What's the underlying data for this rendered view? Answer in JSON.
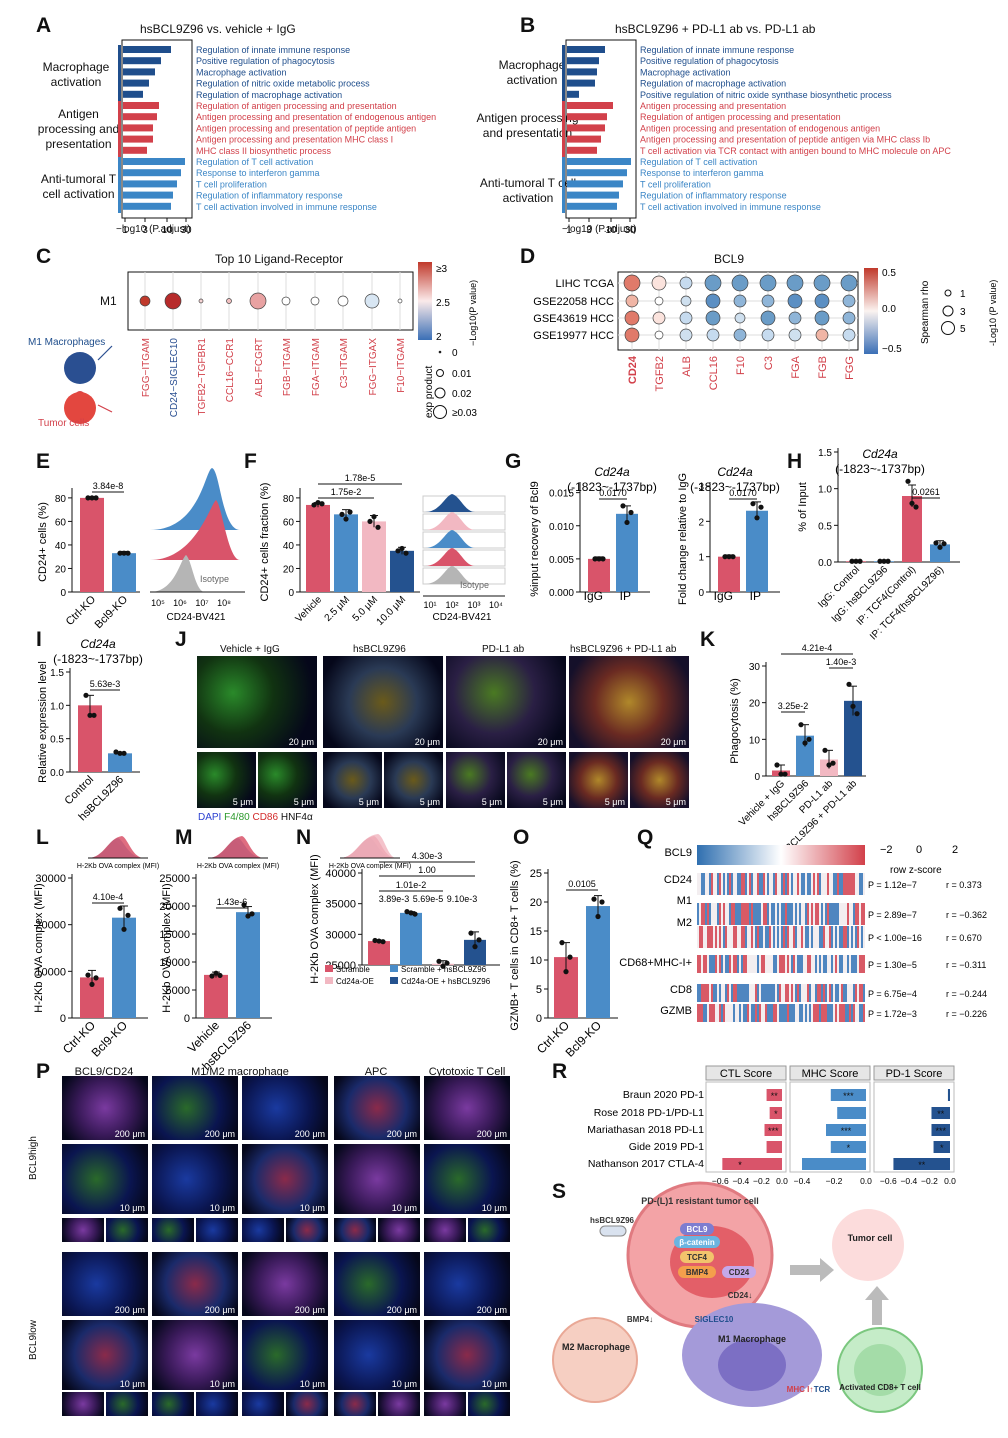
{
  "panel_letters": [
    "A",
    "B",
    "C",
    "D",
    "E",
    "F",
    "G",
    "H",
    "I",
    "J",
    "K",
    "L",
    "M",
    "N",
    "O",
    "P",
    "Q",
    "R",
    "S"
  ],
  "panel_a": {
    "title": "hsBCL9Z96 vs. vehicle + IgG",
    "groups": [
      "Macrophage activation",
      "Antigen processing and presentation",
      "Anti-tumoral T cell activation"
    ],
    "terms": [
      "Regulation of innate immune response",
      "Positive regulation of phagocytosis",
      "Macrophage activation",
      "Regulation of nitric oxide metabolic process",
      "Regulation of macrophage activation",
      "Regulation of antigen processing and presentation",
      "Antigen processing and presentation of endogenous antigen",
      "Antigen processing and presentation of peptide antigen",
      "Antigen processing and presentation MHC class I",
      "MHC class II biosynthetic process",
      "Regulation of T cell activation",
      "Response to interferon gamma",
      "T cell proliferation",
      "Regulation of inflammatory response",
      "T cell activation involved in immune response"
    ],
    "xticks": [
      "1",
      "3",
      "10",
      "30"
    ],
    "xlabel": "−log10 (P.adjust)"
  },
  "panel_b": {
    "title": "hsBCL9Z96 + PD-L1 ab vs. PD-L1 ab",
    "groups": [
      "Macrophage activation",
      "Antigen processing and presentation",
      "Anti-tumoral T cell activation"
    ],
    "terms": [
      "Regulation of innate immune response",
      "Positive regulation of phagocytosis",
      "Macrophage activation",
      "Regulation of macrophage activation",
      "Positive regulation of nitric oxide synthase biosynthetic process",
      "Antigen processing and presentation",
      "Regulation of antigen processing and presentation",
      "Antigen processing and presentation of endogenous antigen",
      "Antigen processing and presentation of peptide antigen via MHC class Ib",
      "T cell activation via TCR contact with antigen bound to MHC molecule on APC",
      "Regulation of T cell activation",
      "Response to interferon gamma",
      "T cell proliferation",
      "Regulation of inflammatory response",
      "T cell activation involved in immune response"
    ],
    "xticks": [
      "1",
      "3",
      "10",
      "30"
    ],
    "xlabel": "−log10 (P.adjust)"
  },
  "panel_c": {
    "title": "Top 10 Ligand-Receptor",
    "row_label": "M1",
    "pairs": [
      "FGG−ITGAM",
      "CD24−SIGLEC10",
      "TGFB2−TGFBR1",
      "CCL16−CCR1",
      "ALB−FCGRT",
      "FGB−ITGAM",
      "FGA−ITGAM",
      "C3−ITGAM",
      "FGG−ITGAX",
      "F10−ITGAM"
    ],
    "colorbar_label": "−Log10(P value)",
    "colorbar_ticks": [
      "≥3",
      "2.5",
      "2"
    ],
    "size_label": "exp product",
    "size_ticks": [
      "0",
      "0.01",
      "0.02",
      "≥0.03"
    ],
    "cell_labels": [
      "M1 Macrophages",
      "Tumor cells"
    ]
  },
  "panel_d": {
    "title": "BCL9",
    "rows": [
      "LIHC TCGA",
      "GSE22058 HCC",
      "GSE43619 HCC",
      "GSE19977 HCC"
    ],
    "cols": [
      "CD24",
      "TGFB2",
      "ALB",
      "CCL16",
      "F10",
      "C3",
      "FGA",
      "FGB",
      "FGG"
    ],
    "colorbar_label": "Spearman rho",
    "colorbar_ticks": [
      "0.5",
      "0.0",
      "−0.5"
    ],
    "size_label": "-Log10 (P value)",
    "size_ticks": [
      "1",
      "3",
      "5"
    ]
  },
  "panel_e": {
    "ylabel": "CD24+ cells (%)",
    "yticks": [
      "0",
      "20",
      "40",
      "60",
      "80"
    ],
    "groups": [
      "Ctrl-KO",
      "Bcl9-KO"
    ],
    "pval": "3.84e-8",
    "hist_xlabel": "CD24-BV421",
    "hist_ticks": [
      "10⁵",
      "10⁶",
      "10⁷",
      "10⁸"
    ],
    "isotype": "Isotype",
    "colors": {
      "ctrl": "#d9546a",
      "ko": "#4a8cc8"
    }
  },
  "panel_f": {
    "ylabel": "CD24+ cells fraction (%)",
    "yticks": [
      "0",
      "20",
      "40",
      "60",
      "80"
    ],
    "groups": [
      "Vehicle",
      "2.5 μM",
      "5.0 μM",
      "10.0 μM"
    ],
    "pvals": [
      "1.78e-5",
      "1.75e-2"
    ],
    "hist_xlabel": "CD24-BV421",
    "hist_ticks": [
      "10¹",
      "10²",
      "10³",
      "10⁴"
    ],
    "isotype": "Isotype"
  },
  "panel_g": {
    "title": "Cd24a",
    "subtitle": "(-1823~-1737bp)",
    "left": {
      "ylabel": "%input recovery of Bcl9",
      "yticks": [
        "0.000",
        "0.005",
        "0.010",
        "0.015"
      ],
      "groups": [
        "IgG",
        "IP"
      ],
      "pval": "0.0170"
    },
    "right": {
      "ylabel": "Fold change relative to IgG",
      "yticks": [
        "0",
        "1",
        "2",
        "3"
      ],
      "groups": [
        "IgG",
        "IP"
      ],
      "pval": "0.0170"
    }
  },
  "panel_h": {
    "title": "Cd24a",
    "subtitle": "(-1823~-1737bp)",
    "ylabel": "% of Input",
    "yticks": [
      "0.0",
      "0.5",
      "1.0",
      "1.5"
    ],
    "groups": [
      "IgG: Control",
      "IgG: hsBCL9Z96",
      "IP: TCF4(Control)",
      "IP: TCF4(hsBCL9Z96)"
    ],
    "pval": "0.0261"
  },
  "panel_i": {
    "title": "Cd24a",
    "subtitle": "(-1823~-1737bp)",
    "ylabel": "Relative expression level",
    "yticks": [
      "0.0",
      "0.5",
      "1.0",
      "1.5"
    ],
    "groups": [
      "Control",
      "hsBCL9Z96"
    ],
    "pval": "5.63e-3"
  },
  "panel_j": {
    "titles": [
      "Vehicle + IgG",
      "hsBCL9Z96",
      "PD-L1 ab",
      "hsBCL9Z96 + PD-L1 ab"
    ],
    "scale_big": "20 μm",
    "scale_small": "5 μm",
    "legend": [
      "DAPI",
      "F4/80",
      "CD86",
      "HNF4α"
    ]
  },
  "panel_k": {
    "ylabel": "Phagocytosis (%)",
    "yticks": [
      "0",
      "10",
      "20",
      "30"
    ],
    "groups": [
      "Vehicle + IgG",
      "hsBCL9Z96",
      "PD-L1 ab",
      "hsBCL9Z96 + PD-L1 ab"
    ],
    "pvals": [
      "4.21e-4",
      "1.40e-3",
      "3.25e-2"
    ]
  },
  "panel_l": {
    "ylabel": "H-2Kb OVA complex (MFI)",
    "yticks": [
      "0",
      "10000",
      "20000",
      "30000"
    ],
    "groups": [
      "Ctrl-KO",
      "Bcl9-KO"
    ],
    "pval": "4.10e-4",
    "hist_label": "H-2Kb OVA complex (MFI)"
  },
  "panel_m": {
    "ylabel": "H-2Kb OVA complex (MFI)",
    "yticks": [
      "0",
      "5000",
      "10000",
      "15000",
      "20000",
      "25000"
    ],
    "groups": [
      "Vehicle",
      "hsBCL9Z96"
    ],
    "pval": "1.43e-6",
    "hist_label": "H-2Kb OVA complex (MFI)"
  },
  "panel_n": {
    "ylabel": "H-2Kb OVA complex (MFI)",
    "yticks": [
      "25000",
      "30000",
      "35000",
      "40000"
    ],
    "pvals": [
      "4.30e-3",
      "1.00",
      "1.01e-2",
      "3.89e-3",
      "5.69e-5",
      "9.10e-3"
    ],
    "legend": [
      "Scramble",
      "Scramble + hsBCL9Z96",
      "Cd24a-OE",
      "Cd24a-OE + hsBCL9Z96"
    ],
    "hist_label": "H-2Kb OVA complex (MFI)"
  },
  "panel_o": {
    "ylabel": "GZMB+ T cells in CD8+ T cells (%)",
    "yticks": [
      "0",
      "5",
      "10",
      "15",
      "20",
      "25"
    ],
    "groups": [
      "Ctrl-KO",
      "Bcl9-KO"
    ],
    "pval": "0.0105"
  },
  "panel_p": {
    "headers": [
      "BCL9/CD24",
      "M1/M2 macrophage",
      "APC",
      "Cytotoxic T Cell"
    ],
    "row_labels": [
      "BCL9high",
      "BCL9low"
    ],
    "scale_big": "200 μm",
    "scale_small": "10 μm"
  },
  "panel_q": {
    "rows": [
      "BCL9",
      "CD24",
      "M1",
      "M2",
      "CD68+MHC-I+",
      "CD8",
      "GZMB"
    ],
    "stats": [
      {
        "p": "P = 1.12e−7",
        "r": "r = 0.373"
      },
      {
        "p": "P = 2.89e−7",
        "r": "r = −0.362"
      },
      {
        "p": "P < 1.00e−16",
        "r": "r = 0.670"
      },
      {
        "p": "P = 1.30e−5",
        "r": "r = −0.311"
      },
      {
        "p": "P = 6.75e−4",
        "r": "r = −0.244"
      },
      {
        "p": "P = 1.72e−3",
        "r": "r = −0.226"
      }
    ],
    "scale_ticks": [
      "−2",
      "0",
      "2"
    ],
    "scale_label": "row z-score"
  },
  "panel_r": {
    "headers": [
      "CTL Score",
      "MHC Score",
      "PD-1 Score"
    ],
    "rows": [
      "Braun 2020 PD-1",
      "Rose 2018 PD-1/PD-L1",
      "Mariathasan 2018 PD-L1",
      "Gide 2019 PD-1",
      "Nathanson 2017 CTLA-4"
    ],
    "ctl": [
      -0.15,
      -0.12,
      -0.17,
      -0.15,
      -0.58
    ],
    "mhc": [
      -0.22,
      -0.18,
      -0.25,
      -0.22,
      -0.4
    ],
    "pd1": [
      -0.02,
      -0.18,
      -0.18,
      -0.16,
      -0.55
    ],
    "ctl_sig": [
      "**",
      "*",
      "***",
      "",
      ""
    ],
    "mhc_sig": [
      "***",
      "",
      "***",
      "*",
      ""
    ],
    "pd1_sig": [
      "",
      "**",
      "***",
      "*",
      "**"
    ],
    "nathanson_ctl_sig": "*",
    "ctl_ticks": [
      "−0.6",
      "−0.4",
      "−0.2",
      "0.0"
    ],
    "mhc_ticks": [
      "−0.4",
      "−0.2",
      "0.0"
    ],
    "pd1_ticks": [
      "−0.6",
      "−0.4",
      "−0.2",
      "0.0"
    ]
  },
  "panel_s": {
    "labels": [
      "PD-(L)1 resistant tumor cell",
      "hsBCL9Z96",
      "BCL9",
      "β-catenin",
      "TCF4",
      "BMP4",
      "CD24",
      "CD24↓",
      "SIGLEC10",
      "M1 Macrophage",
      "M2 Macrophage",
      "BMP4↓",
      "Tumor cell",
      "Activated CD8+ T cell",
      "MHC I↑",
      "TCR"
    ]
  },
  "colors": {
    "dark_blue": "#1f4e8c",
    "light_blue": "#3b86c6",
    "red": "#d2404a",
    "pink": "#e8a2ad",
    "bar_red": "#d9546a",
    "bar_blue": "#4a8cc8",
    "bar_dark": "#24528f"
  }
}
